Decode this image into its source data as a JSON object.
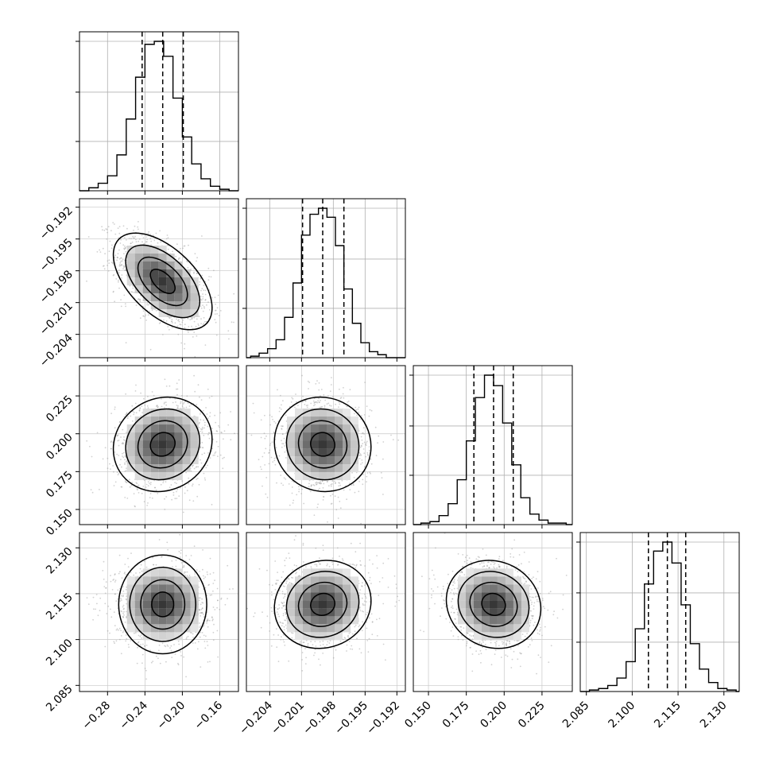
{
  "figure": {
    "type": "corner-plot",
    "grid": true,
    "histogram_color": "#000000",
    "scatter_color": "#9a9a9a",
    "density_color": "#000000",
    "background": "#ffffff"
  },
  "chart_data": [
    {
      "type": "histogram",
      "variable": 0,
      "row": 0,
      "col": 0,
      "xlim": [
        -0.31,
        -0.14
      ],
      "bin_edges": [
        -0.3,
        -0.29,
        -0.28,
        -0.27,
        -0.26,
        -0.25,
        -0.24,
        -0.23,
        -0.22,
        -0.21,
        -0.2,
        -0.19,
        -0.18,
        -0.17,
        -0.16,
        -0.15
      ],
      "counts": [
        0.02,
        0.05,
        0.1,
        0.24,
        0.48,
        0.76,
        0.98,
        1.0,
        0.9,
        0.62,
        0.36,
        0.18,
        0.08,
        0.03,
        0.01
      ],
      "quantiles": [
        -0.243,
        -0.221,
        -0.199
      ],
      "xticks": [
        -0.28,
        -0.24,
        -0.2,
        -0.16
      ],
      "xtick_labels": [
        "−0.28",
        "−0.24",
        "−0.20",
        "−0.16"
      ]
    },
    {
      "type": "histogram",
      "variable": 1,
      "row": 1,
      "col": 1,
      "xlim": [
        -0.2062,
        -0.1912
      ],
      "bin_edges": [
        -0.2058,
        -0.205,
        -0.2042,
        -0.2034,
        -0.2026,
        -0.2018,
        -0.201,
        -0.2002,
        -0.1994,
        -0.1986,
        -0.1978,
        -0.197,
        -0.1962,
        -0.1954,
        -0.1946,
        -0.1938,
        -0.193
      ],
      "counts": [
        0.01,
        0.03,
        0.06,
        0.12,
        0.27,
        0.5,
        0.82,
        0.96,
        1.0,
        0.94,
        0.75,
        0.46,
        0.23,
        0.1,
        0.04,
        0.02
      ],
      "quantiles": [
        -0.2009,
        -0.199,
        -0.197
      ],
      "xticks": [
        -0.204,
        -0.201,
        -0.198,
        -0.195,
        -0.192
      ],
      "xtick_labels": [
        "−0.204",
        "−0.201",
        "−0.198",
        "−0.195",
        "−0.192"
      ]
    },
    {
      "type": "histogram",
      "variable": 2,
      "row": 2,
      "col": 2,
      "xlim": [
        0.14,
        0.245
      ],
      "bin_edges": [
        0.145,
        0.151,
        0.157,
        0.163,
        0.169,
        0.175,
        0.181,
        0.187,
        0.193,
        0.199,
        0.205,
        0.211,
        0.217,
        0.223,
        0.229,
        0.235,
        0.241
      ],
      "counts": [
        0.01,
        0.02,
        0.06,
        0.14,
        0.3,
        0.56,
        0.85,
        1.0,
        0.93,
        0.68,
        0.4,
        0.18,
        0.07,
        0.03,
        0.01,
        0.01
      ],
      "quantiles": [
        0.18,
        0.193,
        0.206
      ],
      "xticks": [
        0.15,
        0.175,
        0.2,
        0.225
      ],
      "xtick_labels": [
        "0.150",
        "0.175",
        "0.200",
        "0.225"
      ]
    },
    {
      "type": "histogram",
      "variable": 3,
      "row": 3,
      "col": 3,
      "xlim": [
        2.083,
        2.135
      ],
      "bin_edges": [
        2.086,
        2.089,
        2.092,
        2.095,
        2.098,
        2.101,
        2.104,
        2.107,
        2.11,
        2.113,
        2.116,
        2.119,
        2.122,
        2.125,
        2.128,
        2.131,
        2.134
      ],
      "counts": [
        0.01,
        0.02,
        0.04,
        0.09,
        0.2,
        0.42,
        0.72,
        0.94,
        1.0,
        0.86,
        0.58,
        0.32,
        0.15,
        0.06,
        0.02,
        0.01
      ],
      "quantiles": [
        2.1053,
        2.1115,
        2.1175
      ],
      "xticks": [
        2.085,
        2.1,
        2.115,
        2.13
      ],
      "xtick_labels": [
        "2.085",
        "2.100",
        "2.115",
        "2.130"
      ]
    },
    {
      "type": "scatter-density",
      "row": 1,
      "col": 0,
      "xlim": [
        -0.31,
        -0.14
      ],
      "ylim": [
        -0.2062,
        -0.1912
      ],
      "mean": [
        -0.221,
        -0.199
      ],
      "sd": [
        0.022,
        0.0019
      ],
      "corr": -0.55,
      "yticks": [
        -0.192,
        -0.195,
        -0.198,
        -0.201,
        -0.204
      ],
      "ytick_labels": [
        "−0.192",
        "−0.195",
        "−0.198",
        "−0.201",
        "−0.204"
      ]
    },
    {
      "type": "scatter-density",
      "row": 2,
      "col": 0,
      "xlim": [
        -0.31,
        -0.14
      ],
      "ylim": [
        0.14,
        0.245
      ],
      "mean": [
        -0.221,
        0.193
      ],
      "sd": [
        0.022,
        0.013
      ],
      "corr": 0.1,
      "yticks": [
        0.225,
        0.2,
        0.175,
        0.15
      ],
      "ytick_labels": [
        "0.225",
        "0.200",
        "0.175",
        "0.150"
      ]
    },
    {
      "type": "scatter-density",
      "row": 2,
      "col": 1,
      "xlim": [
        -0.2062,
        -0.1912
      ],
      "ylim": [
        0.14,
        0.245
      ],
      "mean": [
        -0.199,
        0.193
      ],
      "sd": [
        0.0019,
        0.013
      ],
      "corr": -0.05
    },
    {
      "type": "scatter-density",
      "row": 3,
      "col": 0,
      "xlim": [
        -0.31,
        -0.14
      ],
      "ylim": [
        2.083,
        2.135
      ],
      "mean": [
        -0.221,
        2.1115
      ],
      "sd": [
        0.022,
        0.006
      ],
      "corr": 0.0,
      "yticks": [
        2.13,
        2.115,
        2.1,
        2.085
      ],
      "ytick_labels": [
        "2.130",
        "2.115",
        "2.100",
        "2.085"
      ]
    },
    {
      "type": "scatter-density",
      "row": 3,
      "col": 1,
      "xlim": [
        -0.2062,
        -0.1912
      ],
      "ylim": [
        2.083,
        2.135
      ],
      "mean": [
        -0.199,
        2.1115
      ],
      "sd": [
        0.0019,
        0.006
      ],
      "corr": 0.08
    },
    {
      "type": "scatter-density",
      "row": 3,
      "col": 2,
      "xlim": [
        0.14,
        0.245
      ],
      "ylim": [
        2.083,
        2.135
      ],
      "mean": [
        0.193,
        2.1115
      ],
      "sd": [
        0.013,
        0.006
      ],
      "corr": -0.1
    }
  ]
}
